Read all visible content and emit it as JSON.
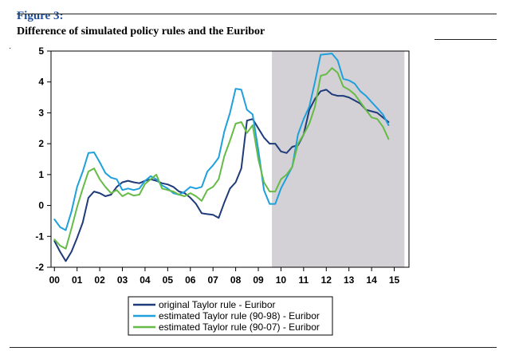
{
  "figure": {
    "label": "Figure 3:",
    "title": "Difference of simulated policy rules and the Euribor"
  },
  "chart_data": {
    "type": "line",
    "title": "Difference of simulated policy rules and the Euribor",
    "xlabel": "",
    "ylabel": "",
    "xlim": [
      -0.15,
      15.65
    ],
    "ylim": [
      -2,
      5
    ],
    "x_ticks": [
      0,
      1,
      2,
      3,
      4,
      5,
      6,
      7,
      8,
      9,
      10,
      11,
      12,
      13,
      14,
      15
    ],
    "x_tick_labels": [
      "00",
      "01",
      "02",
      "03",
      "04",
      "05",
      "06",
      "07",
      "08",
      "09",
      "10",
      "11",
      "12",
      "13",
      "14",
      "15"
    ],
    "y_ticks": [
      -2,
      -1,
      0,
      1,
      2,
      3,
      4,
      5
    ],
    "y_tick_labels": [
      "-2",
      "-1",
      "0",
      "1",
      "2",
      "3",
      "4",
      "5"
    ],
    "shaded_region": {
      "x_from": 9.6,
      "x_to": 15.45,
      "color": "#d3d1d6"
    },
    "legend_position": "bottom-center",
    "series": [
      {
        "name": "original Taylor rule - Euribor",
        "color": "#1f3b7a",
        "x": [
          0.0,
          0.25,
          0.5,
          0.75,
          1.0,
          1.25,
          1.5,
          1.75,
          2.0,
          2.25,
          2.5,
          2.75,
          3.0,
          3.25,
          3.5,
          3.75,
          4.0,
          4.25,
          4.5,
          4.75,
          5.0,
          5.25,
          5.5,
          5.75,
          6.0,
          6.25,
          6.5,
          6.75,
          7.0,
          7.25,
          7.5,
          7.75,
          8.0,
          8.25,
          8.5,
          8.75,
          9.0,
          9.25,
          9.5,
          9.75,
          10.0,
          10.25,
          10.5,
          10.75,
          11.0,
          11.25,
          11.5,
          11.75,
          12.0,
          12.25,
          12.5,
          12.75,
          13.0,
          13.25,
          13.5,
          13.75,
          14.0,
          14.25,
          14.5,
          14.75
        ],
        "values": [
          -1.15,
          -1.5,
          -1.8,
          -1.5,
          -1.05,
          -0.55,
          0.25,
          0.45,
          0.4,
          0.3,
          0.35,
          0.6,
          0.75,
          0.8,
          0.75,
          0.72,
          0.8,
          0.85,
          0.8,
          0.72,
          0.68,
          0.6,
          0.45,
          0.4,
          0.25,
          0.05,
          -0.25,
          -0.28,
          -0.3,
          -0.4,
          0.1,
          0.55,
          0.75,
          1.2,
          2.75,
          2.8,
          2.5,
          2.2,
          2.0,
          2.0,
          1.75,
          1.7,
          1.9,
          1.95,
          2.3,
          3.1,
          3.45,
          3.7,
          3.75,
          3.6,
          3.55,
          3.55,
          3.5,
          3.4,
          3.3,
          3.1,
          3.05,
          3.0,
          2.85,
          2.7
        ]
      },
      {
        "name": "estimated Taylor rule (90-98) - Euribor",
        "color": "#1ea0dc",
        "x": [
          0.0,
          0.25,
          0.5,
          0.75,
          1.0,
          1.25,
          1.5,
          1.75,
          2.0,
          2.25,
          2.5,
          2.75,
          3.0,
          3.25,
          3.5,
          3.75,
          4.0,
          4.25,
          4.5,
          4.75,
          5.0,
          5.25,
          5.5,
          5.75,
          6.0,
          6.25,
          6.5,
          6.75,
          7.0,
          7.25,
          7.5,
          7.75,
          8.0,
          8.25,
          8.5,
          8.75,
          9.0,
          9.25,
          9.5,
          9.75,
          10.0,
          10.25,
          10.5,
          10.75,
          11.0,
          11.25,
          11.5,
          11.75,
          12.0,
          12.25,
          12.5,
          12.75,
          13.0,
          13.25,
          13.5,
          13.75,
          14.0,
          14.25,
          14.5,
          14.75
        ],
        "values": [
          -0.45,
          -0.7,
          -0.8,
          -0.2,
          0.6,
          1.1,
          1.7,
          1.72,
          1.4,
          1.05,
          0.9,
          0.85,
          0.5,
          0.55,
          0.5,
          0.55,
          0.8,
          0.95,
          0.85,
          0.65,
          0.55,
          0.4,
          0.35,
          0.45,
          0.6,
          0.55,
          0.6,
          1.1,
          1.3,
          1.55,
          2.4,
          3.0,
          3.78,
          3.75,
          3.1,
          2.95,
          1.8,
          0.5,
          0.05,
          0.05,
          0.55,
          0.9,
          1.25,
          2.3,
          2.8,
          3.2,
          4.0,
          4.88,
          4.9,
          4.92,
          4.7,
          4.1,
          4.05,
          3.95,
          3.7,
          3.55,
          3.35,
          3.15,
          2.95,
          2.6
        ]
      },
      {
        "name": "estimated Taylor rule (90-07) - Euribor",
        "color": "#66bb46",
        "x": [
          0.0,
          0.25,
          0.5,
          0.75,
          1.0,
          1.25,
          1.5,
          1.75,
          2.0,
          2.25,
          2.5,
          2.75,
          3.0,
          3.25,
          3.5,
          3.75,
          4.0,
          4.25,
          4.5,
          4.75,
          5.0,
          5.25,
          5.5,
          5.75,
          6.0,
          6.25,
          6.5,
          6.75,
          7.0,
          7.25,
          7.5,
          7.75,
          8.0,
          8.25,
          8.5,
          8.75,
          9.0,
          9.25,
          9.5,
          9.75,
          10.0,
          10.25,
          10.5,
          10.75,
          11.0,
          11.25,
          11.5,
          11.75,
          12.0,
          12.25,
          12.5,
          12.75,
          13.0,
          13.25,
          13.5,
          13.75,
          14.0,
          14.25,
          14.5,
          14.75
        ],
        "values": [
          -1.1,
          -1.3,
          -1.4,
          -0.75,
          -0.05,
          0.55,
          1.1,
          1.2,
          0.85,
          0.6,
          0.4,
          0.5,
          0.3,
          0.4,
          0.32,
          0.35,
          0.7,
          0.85,
          1.0,
          0.55,
          0.5,
          0.45,
          0.35,
          0.3,
          0.4,
          0.3,
          0.15,
          0.5,
          0.6,
          0.85,
          1.6,
          2.1,
          2.65,
          2.7,
          2.35,
          2.6,
          1.5,
          0.75,
          0.45,
          0.45,
          0.85,
          1.0,
          1.25,
          2.0,
          2.3,
          2.65,
          3.2,
          4.2,
          4.25,
          4.45,
          4.3,
          3.85,
          3.75,
          3.6,
          3.35,
          3.1,
          2.85,
          2.8,
          2.55,
          2.15
        ]
      }
    ]
  }
}
